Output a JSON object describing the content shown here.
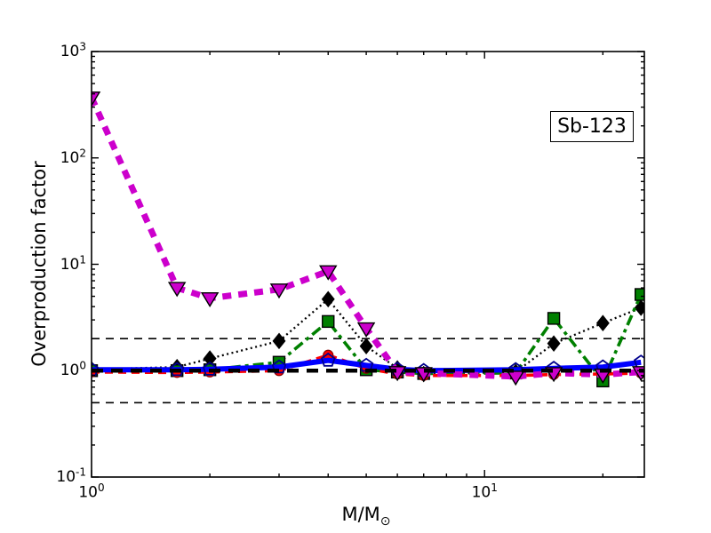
{
  "figure": {
    "background": "#ffffff",
    "ylabel": "Overproduction factor",
    "xlabel_main": "M/M",
    "xlabel_sub": "⊙",
    "annotation_label": "Sb-123"
  },
  "chart_data": {
    "type": "line",
    "title": "",
    "xlabel": "M/M_sun",
    "ylabel": "Overproduction factor",
    "xscale": "log",
    "yscale": "log",
    "xlim": [
      1,
      25.5
    ],
    "ylim": [
      0.1,
      1000
    ],
    "grid": false,
    "legend": "none",
    "annotation": "Sb-123",
    "tick_base": "10",
    "y_ticks": [
      {
        "value": 1000,
        "exp": "3"
      },
      {
        "value": 100,
        "exp": "2"
      },
      {
        "value": 10,
        "exp": "1"
      },
      {
        "value": 1,
        "exp": "0"
      },
      {
        "value": 0.1,
        "exp": "-1"
      }
    ],
    "x_ticks": [
      {
        "value": 1,
        "exp": "0"
      },
      {
        "value": 10,
        "exp": "1"
      }
    ],
    "x_masses": [
      1,
      1.65,
      2,
      3,
      4,
      5,
      6,
      7,
      12,
      15,
      20,
      25
    ],
    "series": [
      {
        "name": "black-dotted-diamonds",
        "color": "#000000",
        "linestyle": "dotted",
        "linewidth": 2.3,
        "marker": "diamond",
        "values": [
          1.03,
          1.08,
          1.3,
          1.9,
          4.7,
          1.7,
          1.05,
          0.93,
          0.97,
          1.8,
          2.8,
          3.9
        ]
      },
      {
        "name": "green-dashdot-squares",
        "color": "#008000",
        "linestyle": "dashdot",
        "linewidth": 3.6,
        "marker": "square",
        "values": [
          1.0,
          1.0,
          1.02,
          1.2,
          2.9,
          1.02,
          0.97,
          0.94,
          0.95,
          3.1,
          0.8,
          5.2
        ]
      },
      {
        "name": "red-dashed-circles",
        "color": "#ff0000",
        "linestyle": "dashed",
        "linewidth": 3.6,
        "marker": "circle",
        "values": [
          0.97,
          0.96,
          0.97,
          1.0,
          1.4,
          1.05,
          0.93,
          0.9,
          0.9,
          0.92,
          0.93,
          0.95
        ]
      },
      {
        "name": "blue-solid-pentagons",
        "color": "#0000ff",
        "linestyle": "solid",
        "linewidth": 6,
        "marker": "pentagon",
        "values": [
          1.02,
          1.02,
          1.03,
          1.08,
          1.25,
          1.12,
          1.03,
          1.0,
          1.02,
          1.05,
          1.08,
          1.2
        ]
      },
      {
        "name": "magenta-thick-dashed-triangles",
        "color": "#cc00cc",
        "linestyle": "dashed",
        "linewidth": 7,
        "marker": "triangle-down",
        "values": [
          370,
          6.0,
          4.8,
          5.8,
          8.6,
          2.5,
          0.97,
          0.95,
          0.88,
          0.95,
          0.92,
          0.97
        ]
      }
    ],
    "ref_lines": [
      {
        "y": 2,
        "style": "thin-dashed"
      },
      {
        "y": 1,
        "style": "thick-dashed"
      },
      {
        "y": 0.5,
        "style": "thin-dashed"
      }
    ]
  }
}
